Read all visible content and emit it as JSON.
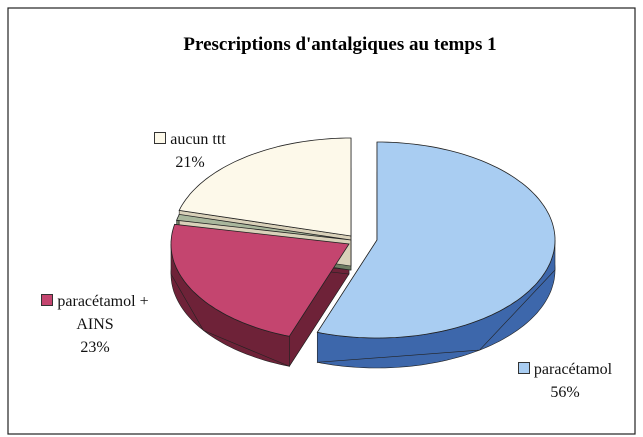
{
  "chart_data": {
    "type": "pie3d",
    "title": "Prescriptions d'antalgiques au temps 1",
    "categories": [
      "paracétamol",
      "paracétamol + AINS",
      null,
      "aucun ttt"
    ],
    "values": [
      56,
      23,
      1,
      21
    ],
    "value_labels": [
      "56%",
      "23%",
      null,
      "21%"
    ],
    "colors": [
      "#a9cdf2",
      "#c4456f",
      "#a9b79c",
      "#fdf9ea"
    ],
    "side_colors": [
      "#3d67ab",
      "#6e2238",
      "#6f7d63",
      "#d9d1b9"
    ]
  }
}
